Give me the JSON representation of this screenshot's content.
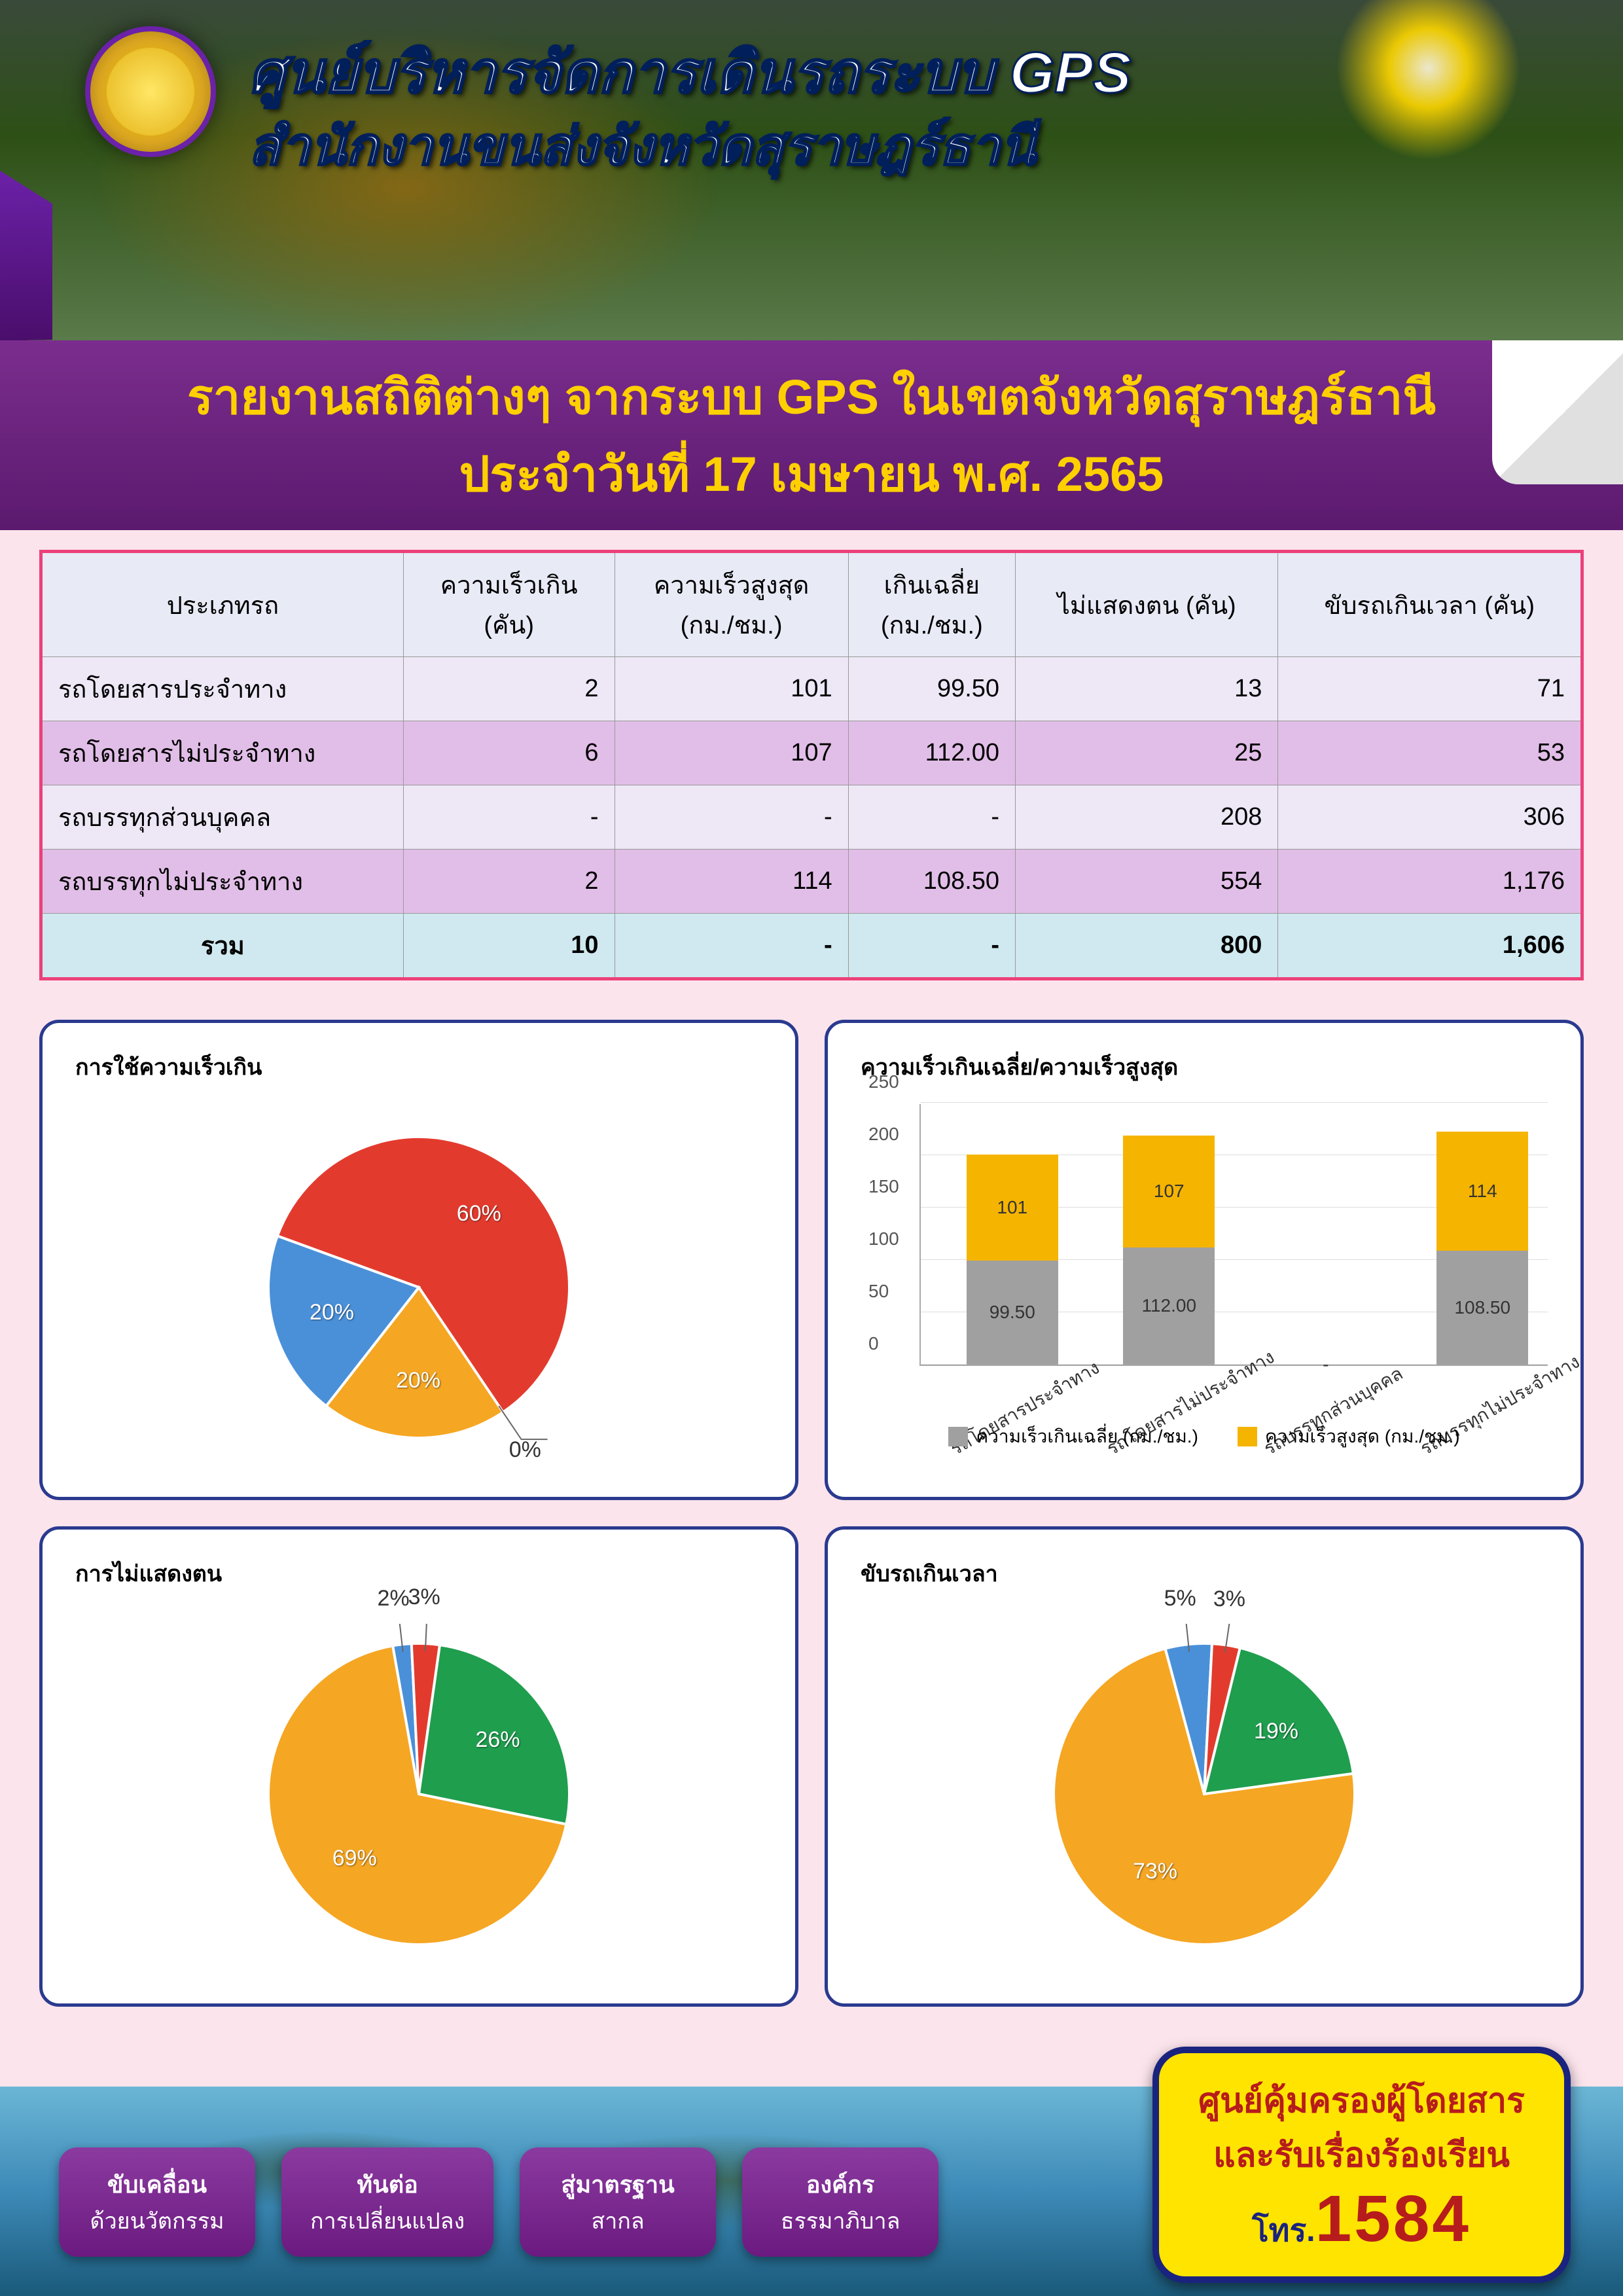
{
  "header": {
    "title_main": "ศูนย์บริหารจัดการเดินรถระบบ GPS",
    "title_sub": "สำนักงานขนส่งจังหวัดสุราษฎร์ธานี",
    "logo_color": "#FFD700",
    "logo_border": "#6B21A8"
  },
  "report": {
    "line1": "รายงานสถิติต่างๆ จากระบบ GPS ในเขตจังหวัดสุราษฎร์ธานี",
    "line2": "ประจำวันที่ 17 เมษายน  พ.ศ. 2565",
    "band_bg": "#7B2D8E",
    "text_color": "#FFD000"
  },
  "table": {
    "border_color": "#ec407a",
    "header_bg": "#e8eaf6",
    "row_odd_bg": "#ede7f6",
    "row_even_bg": "#e1bee7",
    "foot_bg": "#d0e8f0",
    "columns": [
      "ประเภทรถ",
      "ความเร็วเกิน\n(คัน)",
      "ความเร็วสูงสุด\n(กม./ชม.)",
      "เกินเฉลี่ย\n(กม./ชม.)",
      "ไม่แสดงตน (คัน)",
      "ขับรถเกินเวลา (คัน)"
    ],
    "rows": [
      [
        "รถโดยสารประจำทาง",
        "2",
        "101",
        "99.50",
        "13",
        "71"
      ],
      [
        "รถโดยสารไม่ประจำทาง",
        "6",
        "107",
        "112.00",
        "25",
        "53"
      ],
      [
        "รถบรรทุกส่วนบุคคล",
        "-",
        "-",
        "-",
        "208",
        "306"
      ],
      [
        "รถบรรทุกไม่ประจำทาง",
        "2",
        "114",
        "108.50",
        "554",
        "1,176"
      ]
    ],
    "footer": [
      "รวม",
      "10",
      "-",
      "-",
      "800",
      "1,606"
    ]
  },
  "colors": {
    "blue": "#4a90d9",
    "red": "#e23b2e",
    "green": "#1f9e4e",
    "orange": "#f5a623",
    "gray": "#a0a0a0",
    "yellow": "#f5b400"
  },
  "charts": {
    "pie1": {
      "title": "การใช้ความเร็วเกิน",
      "type": "pie",
      "slices": [
        {
          "label": "60%",
          "value": 60,
          "color": "#e23b2e"
        },
        {
          "label": "0%",
          "value": 0,
          "color": "#1f9e4e"
        },
        {
          "label": "20%",
          "value": 20,
          "color": "#f5a623"
        },
        {
          "label": "20%",
          "value": 20,
          "color": "#4a90d9"
        }
      ]
    },
    "bar": {
      "title": "ความเร็วเกินเฉลี่ย/ความเร็วสูงสุด",
      "type": "stacked-bar",
      "ylim": [
        0,
        250
      ],
      "ytick_step": 50,
      "categories": [
        "รถโดยสารประจำทาง",
        "รถโดยสารไม่ประจำทาง",
        "รถบรรทุกส่วนบุคคล",
        "รถบรรทุกไม่ประจำทาง"
      ],
      "series": [
        {
          "name": "ความเร็วเกินเฉลี่ย (กม./ชม.)",
          "color": "#a0a0a0",
          "values": [
            99.5,
            112.0,
            0,
            108.5
          ],
          "labels": [
            "99.50",
            "112.00",
            "-",
            "108.50"
          ]
        },
        {
          "name": "ความเร็วสูงสุด (กม./ชม.)",
          "color": "#f5b400",
          "values": [
            101,
            107,
            0,
            114
          ],
          "labels": [
            "101",
            "107",
            "",
            "114"
          ]
        }
      ]
    },
    "pie2": {
      "title": "การไม่แสดงตน",
      "type": "pie",
      "slices": [
        {
          "label": "2%",
          "value": 2,
          "color": "#4a90d9"
        },
        {
          "label": "3%",
          "value": 3,
          "color": "#e23b2e"
        },
        {
          "label": "26%",
          "value": 26,
          "color": "#1f9e4e"
        },
        {
          "label": "69%",
          "value": 69,
          "color": "#f5a623"
        }
      ]
    },
    "pie3": {
      "title": "ขับรถเกินเวลา",
      "type": "pie",
      "slices": [
        {
          "label": "5%",
          "value": 5,
          "color": "#4a90d9"
        },
        {
          "label": "3%",
          "value": 3,
          "color": "#e23b2e"
        },
        {
          "label": "19%",
          "value": 19,
          "color": "#1f9e4e"
        },
        {
          "label": "73%",
          "value": 73,
          "color": "#f5a623"
        }
      ]
    }
  },
  "footer": {
    "pills": [
      {
        "top": "ขับเคลื่อน",
        "bot": "ด้วยนวัตกรรม"
      },
      {
        "top": "ทันต่อ",
        "bot": "การเปลี่ยนแปลง"
      },
      {
        "top": "สู่มาตรฐาน",
        "bot": "สากล"
      },
      {
        "top": "องค์กร",
        "bot": "ธรรมาภิบาล"
      }
    ],
    "pill_bg": "#8B3AA0",
    "hotline": {
      "line1": "ศูนย์คุ้มครองผู้โดยสาร",
      "line2": "และรับเรื่องร้องเรียน",
      "prefix": "โทร.",
      "number": "1584",
      "bg": "#FFE400",
      "border": "#1A237E",
      "text": "#b71c1c"
    }
  }
}
